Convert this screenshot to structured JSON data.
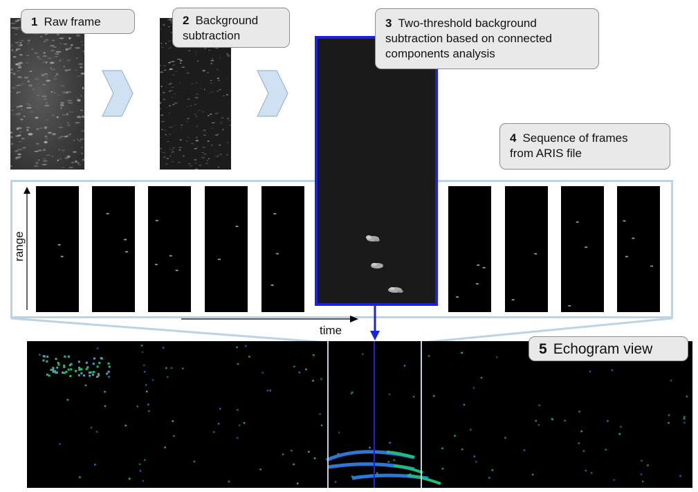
{
  "steps": {
    "s1": {
      "number": "1",
      "label": "Raw frame"
    },
    "s2": {
      "number": "2",
      "label": "Background subtraction",
      "line1": "Background",
      "line2": "subtraction"
    },
    "s3": {
      "number": "3",
      "label": "Two-threshold background subtraction based on connected components analysis",
      "line1": "Two-threshold background",
      "line2": "subtraction based on connected",
      "line3": "components analysis"
    },
    "s4": {
      "number": "4",
      "label": "Sequence of frames from ARIS file",
      "line1": "Sequence of frames",
      "line2": "from ARIS file"
    },
    "s5": {
      "number": "5",
      "label": "Echogram view"
    }
  },
  "axes": {
    "range": "range",
    "time": "time"
  },
  "colors": {
    "panel_border": "#bcd3e6",
    "chevron_fill": "#cfe1f3",
    "highlight_blue": "#1a22e0",
    "echo_green": "#1fbf73",
    "echo_blue": "#2a78d8",
    "callout_bg": "#e9e9e9"
  }
}
